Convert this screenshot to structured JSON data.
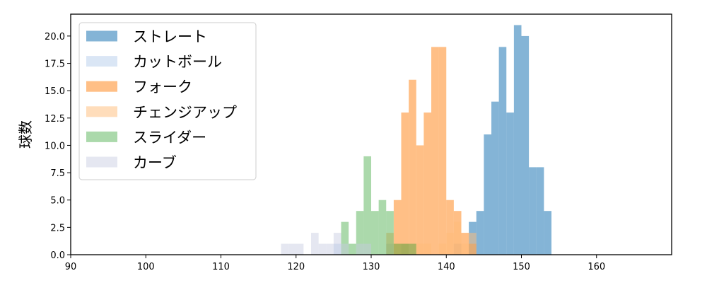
{
  "chart_data": {
    "type": "bar",
    "title": "",
    "xlabel": "",
    "ylabel": "球数",
    "xlim": [
      90,
      170
    ],
    "ylim": [
      0,
      22
    ],
    "x_ticks": [
      "90",
      "100",
      "110",
      "120",
      "130",
      "140",
      "150",
      "160"
    ],
    "y_ticks": [
      "0.0",
      "2.5",
      "5.0",
      "7.5",
      "10.0",
      "12.5",
      "15.0",
      "17.5",
      "20.0"
    ],
    "grid": false,
    "legend_position": "top-left",
    "series": [
      {
        "name": "ストレート",
        "color": "#1f77b4",
        "opacity": 0.55,
        "bins": [
          [
            143,
            144,
            3
          ],
          [
            144,
            145,
            4
          ],
          [
            145,
            146,
            11
          ],
          [
            146,
            147,
            14
          ],
          [
            147,
            148,
            19
          ],
          [
            148,
            149,
            13
          ],
          [
            149,
            150,
            21
          ],
          [
            150,
            151,
            20
          ],
          [
            151,
            152,
            8
          ],
          [
            152,
            153,
            8
          ],
          [
            153,
            154,
            4
          ]
        ]
      },
      {
        "name": "カットボール",
        "color": "#aec7e8",
        "opacity": 0.45,
        "bins": [
          [
            125,
            126,
            1
          ],
          [
            132,
            133,
            1
          ],
          [
            134,
            135,
            1
          ],
          [
            141,
            142,
            1
          ]
        ]
      },
      {
        "name": "フォーク",
        "color": "#ff7f0e",
        "opacity": 0.5,
        "bins": [
          [
            133,
            134,
            5
          ],
          [
            134,
            135,
            13
          ],
          [
            135,
            136,
            16
          ],
          [
            136,
            137,
            10
          ],
          [
            137,
            138,
            13
          ],
          [
            138,
            139,
            19
          ],
          [
            139,
            140,
            19
          ],
          [
            140,
            141,
            5
          ],
          [
            141,
            142,
            4
          ],
          [
            142,
            143,
            2
          ],
          [
            143,
            144,
            1
          ]
        ]
      },
      {
        "name": "チェンジアップ",
        "color": "#ffbb78",
        "opacity": 0.5,
        "bins": [
          [
            132,
            133,
            2
          ],
          [
            133,
            134,
            1
          ],
          [
            134,
            135,
            1
          ],
          [
            136,
            137,
            1
          ],
          [
            137,
            138,
            1
          ],
          [
            139,
            140,
            1
          ],
          [
            140,
            141,
            2
          ],
          [
            141,
            142,
            3
          ],
          [
            142,
            143,
            1
          ],
          [
            143,
            144,
            2
          ]
        ]
      },
      {
        "name": "スライダー",
        "color": "#2ca02c",
        "opacity": 0.4,
        "bins": [
          [
            126,
            127,
            3
          ],
          [
            127,
            128,
            1
          ],
          [
            128,
            129,
            4
          ],
          [
            129,
            130,
            9
          ],
          [
            130,
            131,
            4
          ],
          [
            131,
            132,
            5
          ],
          [
            132,
            133,
            4
          ],
          [
            133,
            134,
            1
          ],
          [
            134,
            135,
            1
          ],
          [
            135,
            136,
            1
          ]
        ]
      },
      {
        "name": "カーブ",
        "color": "#c5c9e1",
        "opacity": 0.45,
        "bins": [
          [
            118,
            119,
            1
          ],
          [
            119,
            120,
            1
          ],
          [
            120,
            121,
            1
          ],
          [
            122,
            123,
            2
          ],
          [
            123,
            124,
            1
          ],
          [
            124,
            125,
            1
          ],
          [
            125,
            126,
            2
          ],
          [
            126,
            127,
            1
          ],
          [
            128,
            129,
            1
          ],
          [
            129,
            130,
            1
          ]
        ]
      }
    ]
  }
}
